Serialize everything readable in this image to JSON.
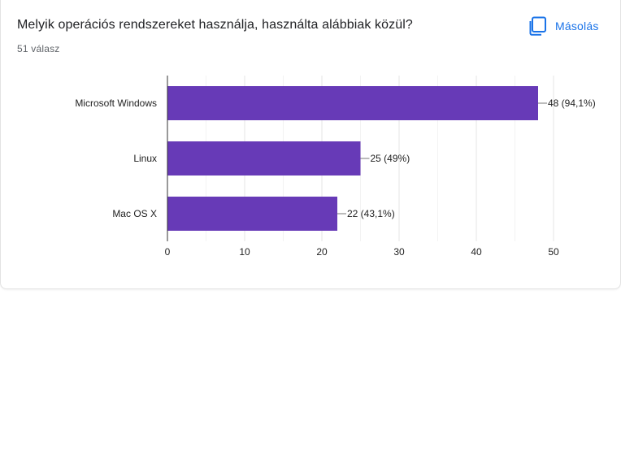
{
  "card": {
    "question": "Melyik operációs rendszereket használja, használta alábbiak közül?",
    "response_count": "51 válasz",
    "copy_label": "Másolás",
    "copy_icon": "copy-icon",
    "accent_color": "#1a73e8"
  },
  "chart_data": {
    "type": "bar",
    "orientation": "horizontal",
    "categories": [
      "Microsoft Windows",
      "Linux",
      "Mac OS X"
    ],
    "values": [
      48,
      25,
      22
    ],
    "data_labels": [
      "48 (94,1%)",
      "25 (49%)",
      "22 (43,1%)"
    ],
    "xlim": [
      0,
      50
    ],
    "x_ticks": [
      0,
      10,
      20,
      30,
      40,
      50
    ],
    "bar_color": "#673ab7",
    "grid": true,
    "title": "",
    "xlabel": "",
    "ylabel": ""
  }
}
